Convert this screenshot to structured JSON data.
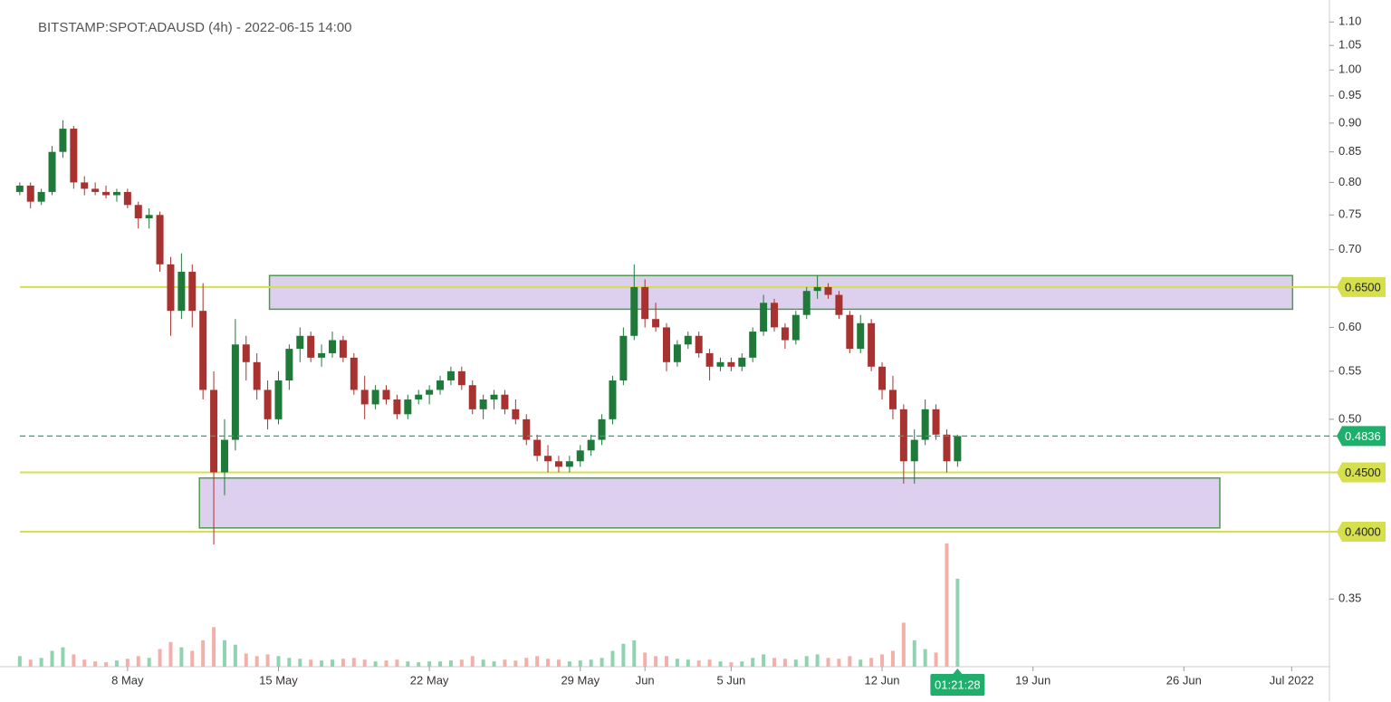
{
  "chart_data": {
    "type": "candlestick",
    "title": "BITSTAMP:SPOT:ADAUSD (4h) - 2022-06-15 14:00",
    "log_scale": true,
    "x": [
      "2022-05-03 00:00",
      "2022-05-03 12:00",
      "2022-05-04 00:00",
      "2022-05-04 12:00",
      "2022-05-05 00:00",
      "2022-05-05 12:00",
      "2022-05-06 00:00",
      "2022-05-06 12:00",
      "2022-05-07 00:00",
      "2022-05-07 12:00",
      "2022-05-08 00:00",
      "2022-05-08 12:00",
      "2022-05-09 00:00",
      "2022-05-09 12:00",
      "2022-05-10 00:00",
      "2022-05-10 12:00",
      "2022-05-11 00:00",
      "2022-05-11 12:00",
      "2022-05-12 00:00",
      "2022-05-12 12:00",
      "2022-05-13 00:00",
      "2022-05-13 12:00",
      "2022-05-14 00:00",
      "2022-05-14 12:00",
      "2022-05-15 00:00",
      "2022-05-15 12:00",
      "2022-05-16 00:00",
      "2022-05-16 12:00",
      "2022-05-17 00:00",
      "2022-05-17 12:00",
      "2022-05-18 00:00",
      "2022-05-18 12:00",
      "2022-05-19 00:00",
      "2022-05-19 12:00",
      "2022-05-20 00:00",
      "2022-05-20 12:00",
      "2022-05-21 00:00",
      "2022-05-21 12:00",
      "2022-05-22 00:00",
      "2022-05-22 12:00",
      "2022-05-23 00:00",
      "2022-05-23 12:00",
      "2022-05-24 00:00",
      "2022-05-24 12:00",
      "2022-05-25 00:00",
      "2022-05-25 12:00",
      "2022-05-26 00:00",
      "2022-05-26 12:00",
      "2022-05-27 00:00",
      "2022-05-27 12:00",
      "2022-05-28 00:00",
      "2022-05-28 12:00",
      "2022-05-29 00:00",
      "2022-05-29 12:00",
      "2022-05-30 00:00",
      "2022-05-30 12:00",
      "2022-05-31 00:00",
      "2022-05-31 12:00",
      "2022-06-01 00:00",
      "2022-06-01 12:00",
      "2022-06-02 00:00",
      "2022-06-02 12:00",
      "2022-06-03 00:00",
      "2022-06-03 12:00",
      "2022-06-04 00:00",
      "2022-06-04 12:00",
      "2022-06-05 00:00",
      "2022-06-05 12:00",
      "2022-06-06 00:00",
      "2022-06-06 12:00",
      "2022-06-07 00:00",
      "2022-06-07 12:00",
      "2022-06-08 00:00",
      "2022-06-08 12:00",
      "2022-06-09 00:00",
      "2022-06-09 12:00",
      "2022-06-10 00:00",
      "2022-06-10 12:00",
      "2022-06-11 00:00",
      "2022-06-11 12:00",
      "2022-06-12 00:00",
      "2022-06-12 12:00",
      "2022-06-13 00:00",
      "2022-06-13 12:00",
      "2022-06-14 00:00",
      "2022-06-14 12:00",
      "2022-06-15 00:00",
      "2022-06-15 12:00"
    ],
    "open": [
      0.785,
      0.795,
      0.77,
      0.785,
      0.85,
      0.89,
      0.8,
      0.79,
      0.785,
      0.78,
      0.785,
      0.765,
      0.745,
      0.75,
      0.68,
      0.62,
      0.67,
      0.62,
      0.53,
      0.45,
      0.48,
      0.58,
      0.56,
      0.53,
      0.5,
      0.54,
      0.575,
      0.59,
      0.565,
      0.57,
      0.585,
      0.565,
      0.53,
      0.515,
      0.53,
      0.52,
      0.505,
      0.52,
      0.525,
      0.53,
      0.54,
      0.55,
      0.535,
      0.51,
      0.52,
      0.525,
      0.51,
      0.5,
      0.48,
      0.465,
      0.46,
      0.455,
      0.46,
      0.47,
      0.48,
      0.5,
      0.54,
      0.59,
      0.65,
      0.61,
      0.6,
      0.56,
      0.58,
      0.59,
      0.57,
      0.555,
      0.56,
      0.555,
      0.565,
      0.595,
      0.63,
      0.6,
      0.585,
      0.615,
      0.645,
      0.65,
      0.64,
      0.615,
      0.575,
      0.605,
      0.555,
      0.53,
      0.51,
      0.46,
      0.48,
      0.51,
      0.485,
      0.46
    ],
    "high": [
      0.8,
      0.8,
      0.79,
      0.86,
      0.905,
      0.895,
      0.81,
      0.8,
      0.795,
      0.79,
      0.79,
      0.77,
      0.76,
      0.755,
      0.69,
      0.695,
      0.68,
      0.655,
      0.55,
      0.5,
      0.61,
      0.59,
      0.57,
      0.54,
      0.55,
      0.58,
      0.6,
      0.595,
      0.58,
      0.595,
      0.59,
      0.57,
      0.545,
      0.535,
      0.535,
      0.525,
      0.525,
      0.53,
      0.535,
      0.545,
      0.555,
      0.555,
      0.54,
      0.525,
      0.53,
      0.53,
      0.52,
      0.505,
      0.485,
      0.475,
      0.465,
      0.465,
      0.475,
      0.485,
      0.505,
      0.545,
      0.6,
      0.68,
      0.66,
      0.63,
      0.605,
      0.585,
      0.595,
      0.595,
      0.575,
      0.565,
      0.565,
      0.57,
      0.6,
      0.64,
      0.635,
      0.605,
      0.62,
      0.65,
      0.665,
      0.655,
      0.645,
      0.62,
      0.615,
      0.61,
      0.56,
      0.545,
      0.515,
      0.49,
      0.52,
      0.515,
      0.49,
      0.485
    ],
    "low": [
      0.78,
      0.76,
      0.765,
      0.78,
      0.84,
      0.79,
      0.78,
      0.78,
      0.775,
      0.77,
      0.76,
      0.73,
      0.73,
      0.67,
      0.59,
      0.61,
      0.6,
      0.52,
      0.39,
      0.43,
      0.47,
      0.54,
      0.52,
      0.49,
      0.495,
      0.53,
      0.56,
      0.56,
      0.555,
      0.565,
      0.56,
      0.525,
      0.5,
      0.51,
      0.515,
      0.5,
      0.5,
      0.515,
      0.515,
      0.525,
      0.535,
      0.53,
      0.505,
      0.5,
      0.51,
      0.505,
      0.495,
      0.475,
      0.46,
      0.45,
      0.45,
      0.45,
      0.455,
      0.465,
      0.475,
      0.495,
      0.535,
      0.585,
      0.6,
      0.595,
      0.55,
      0.555,
      0.575,
      0.565,
      0.54,
      0.55,
      0.55,
      0.55,
      0.56,
      0.59,
      0.595,
      0.575,
      0.58,
      0.61,
      0.635,
      0.635,
      0.61,
      0.57,
      0.57,
      0.55,
      0.52,
      0.5,
      0.44,
      0.44,
      0.475,
      0.48,
      0.45,
      0.455
    ],
    "close": [
      0.795,
      0.77,
      0.785,
      0.85,
      0.89,
      0.8,
      0.79,
      0.785,
      0.78,
      0.785,
      0.765,
      0.745,
      0.75,
      0.68,
      0.62,
      0.67,
      0.62,
      0.53,
      0.45,
      0.48,
      0.58,
      0.56,
      0.53,
      0.5,
      0.54,
      0.575,
      0.59,
      0.565,
      0.57,
      0.585,
      0.565,
      0.53,
      0.515,
      0.53,
      0.52,
      0.505,
      0.52,
      0.525,
      0.53,
      0.54,
      0.55,
      0.535,
      0.51,
      0.52,
      0.525,
      0.51,
      0.5,
      0.48,
      0.465,
      0.46,
      0.455,
      0.46,
      0.47,
      0.48,
      0.5,
      0.54,
      0.59,
      0.65,
      0.61,
      0.6,
      0.56,
      0.58,
      0.59,
      0.57,
      0.555,
      0.56,
      0.555,
      0.565,
      0.595,
      0.63,
      0.6,
      0.585,
      0.615,
      0.645,
      0.65,
      0.64,
      0.615,
      0.575,
      0.605,
      0.555,
      0.53,
      0.51,
      0.46,
      0.48,
      0.51,
      0.485,
      0.46,
      0.4836
    ],
    "volume": [
      12,
      8,
      10,
      18,
      22,
      14,
      8,
      6,
      5,
      7,
      9,
      12,
      10,
      20,
      28,
      22,
      18,
      30,
      45,
      30,
      25,
      15,
      12,
      14,
      12,
      10,
      9,
      8,
      7,
      8,
      9,
      10,
      8,
      6,
      7,
      8,
      6,
      5,
      6,
      6,
      7,
      8,
      12,
      8,
      6,
      8,
      7,
      10,
      12,
      9,
      8,
      6,
      7,
      8,
      10,
      18,
      26,
      30,
      16,
      12,
      12,
      9,
      8,
      7,
      8,
      6,
      5,
      6,
      10,
      14,
      10,
      9,
      8,
      12,
      14,
      10,
      9,
      12,
      8,
      10,
      14,
      18,
      50,
      30,
      20,
      16,
      140,
      100
    ],
    "up_color": "#1f7a3a",
    "down_color": "#a8322f",
    "volume_up_color": "#8fd3b0",
    "volume_down_color": "#f3b0ab",
    "xlim": [
      "2022-05-02 02:00",
      "2022-07-02 18:00"
    ],
    "xticks": [
      {
        "value": "2022-05-08",
        "label": "8 May"
      },
      {
        "value": "2022-05-15",
        "label": "15 May"
      },
      {
        "value": "2022-05-22",
        "label": "22 May"
      },
      {
        "value": "2022-05-29",
        "label": "29 May"
      },
      {
        "value": "2022-06-01",
        "label": "Jun"
      },
      {
        "value": "2022-06-05",
        "label": "5 Jun"
      },
      {
        "value": "2022-06-12",
        "label": "12 Jun"
      },
      {
        "value": "2022-06-19",
        "label": "19 Jun"
      },
      {
        "value": "2022-06-26",
        "label": "26 Jun"
      },
      {
        "value": "2022-07-01",
        "label": "Jul 2022"
      }
    ],
    "ylim": [
      0.306,
      1.149
    ],
    "yticks": [
      {
        "value": 1.1,
        "label": "1.10"
      },
      {
        "value": 1.05,
        "label": "1.05"
      },
      {
        "value": 1.0,
        "label": "1.00"
      },
      {
        "value": 0.95,
        "label": "0.95"
      },
      {
        "value": 0.9,
        "label": "0.90"
      },
      {
        "value": 0.85,
        "label": "0.85"
      },
      {
        "value": 0.8,
        "label": "0.80"
      },
      {
        "value": 0.75,
        "label": "0.75"
      },
      {
        "value": 0.7,
        "label": "0.70"
      },
      {
        "value": 0.6,
        "label": "0.60"
      },
      {
        "value": 0.55,
        "label": "0.55"
      },
      {
        "value": 0.5,
        "label": "0.50"
      },
      {
        "value": 0.4,
        "label": "0.40"
      },
      {
        "value": 0.35,
        "label": "0.35"
      }
    ],
    "levels": [
      {
        "value": 0.65,
        "label": "0.6500"
      },
      {
        "value": 0.45,
        "label": "0.4500"
      },
      {
        "value": 0.4,
        "label": "0.4000"
      }
    ],
    "level_color": "#d6e04c",
    "current_price": {
      "value": 0.4836,
      "label": "0.4836"
    },
    "current_color": "#1fae6b",
    "countdown": "01:21:28",
    "zones": [
      {
        "x0": "2022-05-14 14:00",
        "x1": "2022-07-01 01:00",
        "y0": 0.622,
        "y1": 0.665
      },
      {
        "x0": "2022-05-11 08:00",
        "x1": "2022-06-27 16:00",
        "y0": 0.403,
        "y1": 0.445
      }
    ],
    "zone_fill": "#dcd0ee",
    "zone_stroke": "#4f9a4f"
  }
}
